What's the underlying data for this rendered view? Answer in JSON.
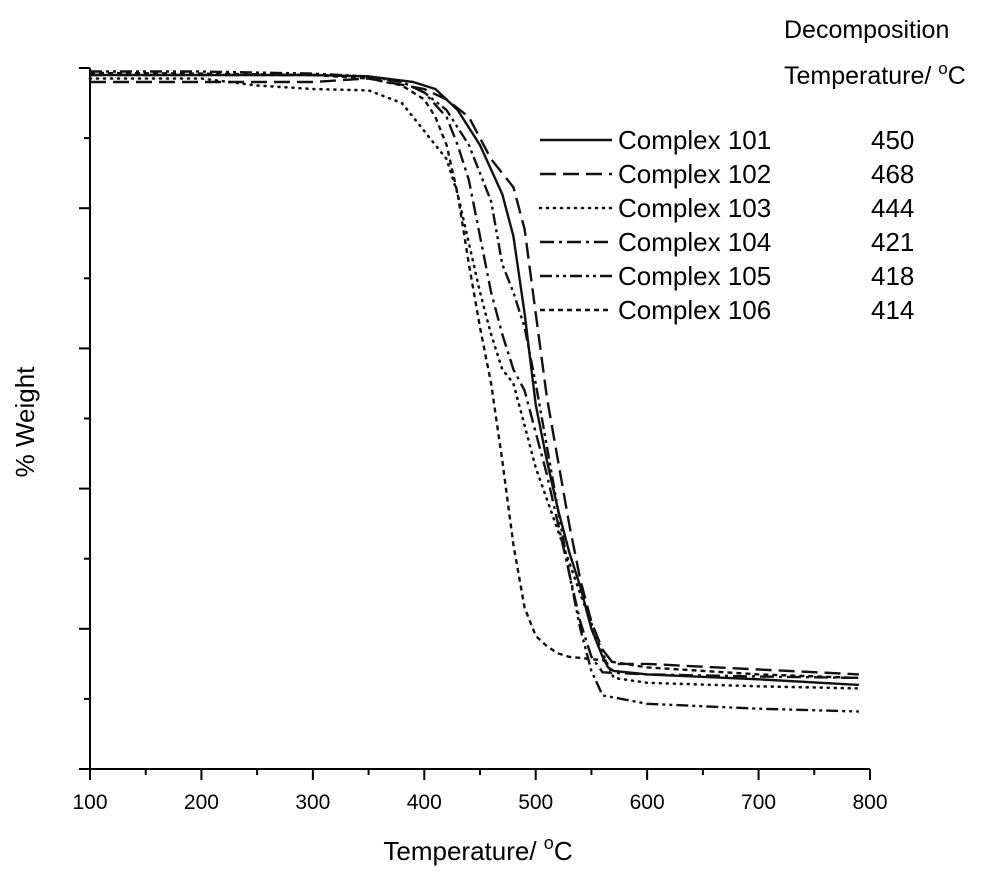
{
  "chart_data": {
    "type": "line",
    "title": "",
    "xlabel_main": "Temperature/ ",
    "xlabel_sup": "o",
    "xlabel_unit": "C",
    "ylabel": "% Weight",
    "xlim": [
      100,
      800
    ],
    "ylim": [
      0,
      100
    ],
    "grid": false,
    "legend_position": "top-right",
    "x_ticks": [
      "100",
      "200",
      "300",
      "400",
      "500",
      "600",
      "700",
      "800"
    ],
    "legend_header": {
      "line1": "Decomposition",
      "line2_main": "Temperature/ ",
      "line2_sup": "o",
      "line2_unit": "C"
    },
    "series": [
      {
        "name": "Complex 101",
        "decomposition_temp": "450",
        "style": "solid",
        "x": [
          100,
          200,
          300,
          350,
          390,
          410,
          430,
          450,
          470,
          480,
          490,
          500,
          510,
          520,
          530,
          540,
          550,
          560,
          565,
          570,
          600,
          700,
          790
        ],
        "y": [
          99,
          99,
          99,
          98.8,
          98,
          97,
          94,
          89,
          82,
          76,
          65,
          52,
          44,
          37,
          31,
          26,
          20,
          16,
          14.5,
          14,
          13.5,
          12.8,
          12
        ]
      },
      {
        "name": "Complex 102",
        "decomposition_temp": "468",
        "style": "dashed",
        "x": [
          100,
          200,
          300,
          350,
          400,
          420,
          440,
          460,
          480,
          490,
          500,
          510,
          520,
          530,
          540,
          550,
          560,
          570,
          600,
          700,
          790
        ],
        "y": [
          98,
          98,
          98,
          98.5,
          97,
          95.5,
          93,
          87,
          83,
          77,
          65,
          53,
          44,
          35,
          27,
          21,
          17,
          15,
          15,
          14.2,
          13.5
        ]
      },
      {
        "name": "Complex 103",
        "decomposition_temp": "444",
        "style": "dotted",
        "x": [
          100,
          200,
          250,
          300,
          350,
          380,
          400,
          420,
          430,
          440,
          450,
          460,
          470,
          480,
          490,
          500,
          520,
          540,
          560,
          570,
          600,
          700,
          790
        ],
        "y": [
          98.5,
          98.5,
          97.5,
          97,
          96.8,
          95,
          91,
          87,
          82,
          75,
          68,
          62,
          57,
          55,
          49,
          43,
          34,
          25,
          16.5,
          13,
          12.3,
          11.8,
          11.5
        ]
      },
      {
        "name": "Complex 104",
        "decomposition_temp": "421",
        "style": "dashdot",
        "x": [
          100,
          200,
          300,
          350,
          380,
          400,
          420,
          430,
          440,
          450,
          460,
          470,
          480,
          490,
          500,
          510,
          520,
          530,
          540,
          550,
          560,
          600,
          700,
          790
        ],
        "y": [
          99,
          99,
          99,
          98.8,
          98,
          96.5,
          93,
          89,
          84,
          76,
          68,
          62,
          57,
          54,
          48,
          42,
          35,
          28,
          21,
          16,
          13.8,
          13.5,
          13.2,
          13
        ]
      },
      {
        "name": "Complex 105",
        "decomposition_temp": "418",
        "style": "dashdotdot",
        "x": [
          100,
          200,
          300,
          350,
          380,
          400,
          420,
          440,
          460,
          470,
          480,
          490,
          500,
          510,
          520,
          530,
          540,
          550,
          560,
          600,
          700,
          790
        ],
        "y": [
          99.5,
          99.5,
          99.2,
          98.8,
          98,
          96.5,
          94,
          89,
          81,
          72,
          68,
          63,
          55,
          46,
          37,
          28,
          20,
          14,
          10.5,
          9.3,
          8.6,
          8.2
        ]
      },
      {
        "name": "Complex 106",
        "decomposition_temp": "414",
        "style": "shortdash",
        "x": [
          100,
          200,
          300,
          350,
          380,
          400,
          410,
          420,
          430,
          440,
          450,
          460,
          470,
          480,
          490,
          500,
          510,
          520,
          530,
          560,
          600,
          700,
          790
        ],
        "y": [
          99.3,
          99.2,
          99,
          98.5,
          97.5,
          95.5,
          93,
          89,
          82,
          72,
          63,
          55,
          44,
          32,
          23,
          19,
          17.5,
          16.5,
          16,
          15.5,
          14.5,
          13.5,
          13
        ]
      }
    ]
  }
}
